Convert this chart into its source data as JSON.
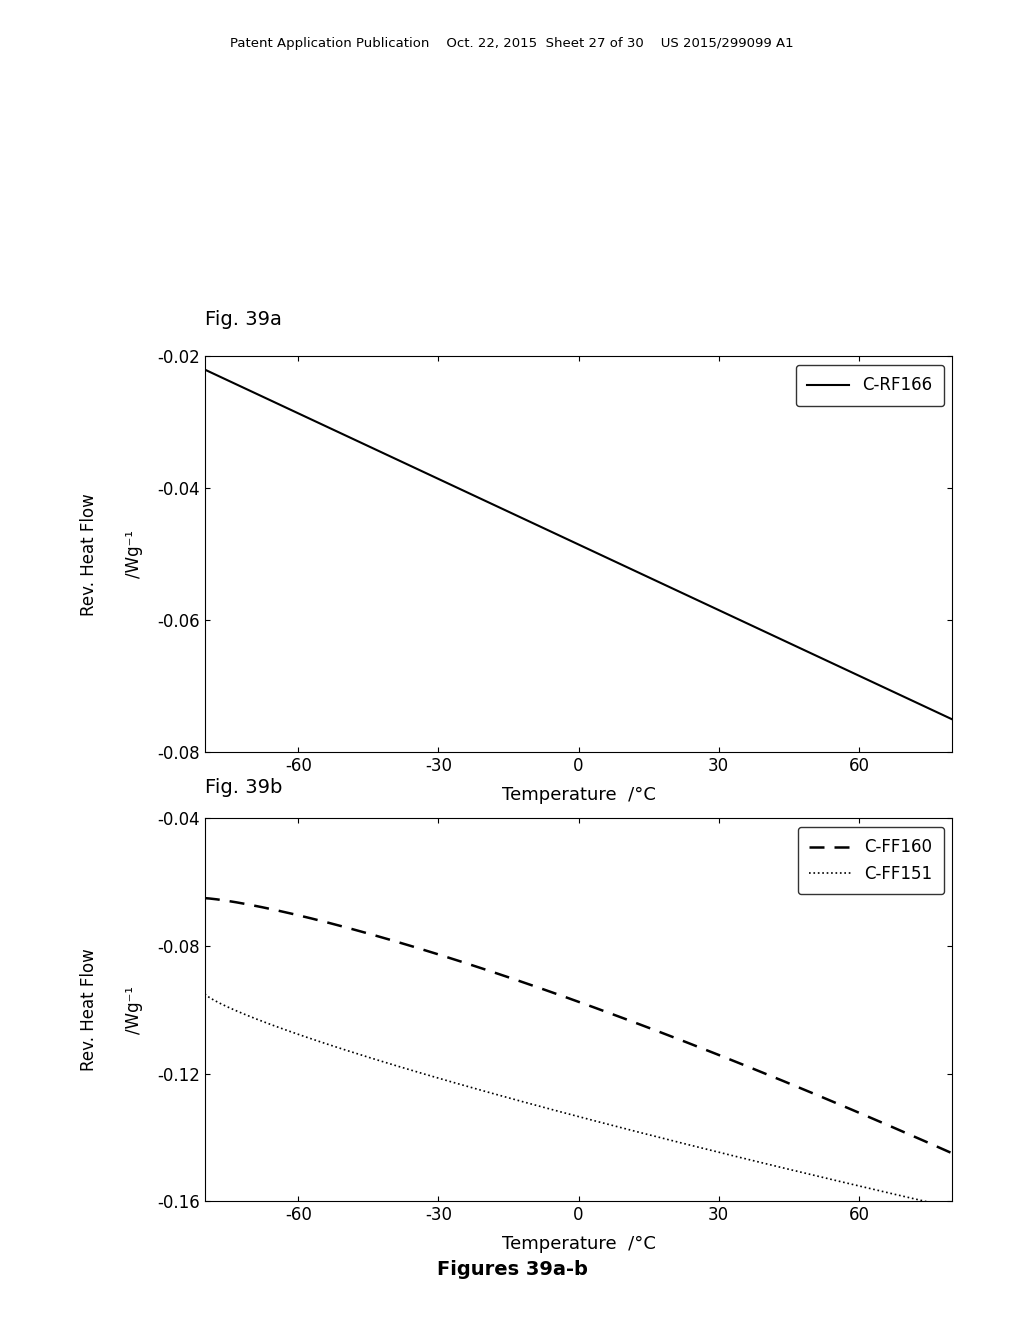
{
  "header_text": "Patent Application Publication    Oct. 22, 2015  Sheet 27 of 30    US 2015/299099 A1",
  "fig_a_title": "Fig. 39a",
  "fig_b_title": "Fig. 39b",
  "fig_a_ylabel1": "Rev. Heat Flow",
  "fig_a_ylabel2": "/Wg⁻¹",
  "fig_b_ylabel1": "Rev. Heat Flow",
  "fig_b_ylabel2": "/Wg⁻¹",
  "xlabel": "Temperature  /°C",
  "fig_a_ylim": [
    -0.08,
    -0.02
  ],
  "fig_a_yticks": [
    -0.08,
    -0.06,
    -0.04,
    -0.02
  ],
  "fig_b_ylim": [
    -0.16,
    -0.04
  ],
  "fig_b_yticks": [
    -0.16,
    -0.12,
    -0.08,
    -0.04
  ],
  "xlim": [
    -80,
    80
  ],
  "xticks": [
    -60,
    -30,
    0,
    30,
    60
  ],
  "legend_a_label": "C-RF166",
  "legend_b_label1": "C-FF160",
  "legend_b_label2": "C-FF151",
  "caption": "Figures 39a-b",
  "bg_color": "#ffffff",
  "line_color": "#000000"
}
